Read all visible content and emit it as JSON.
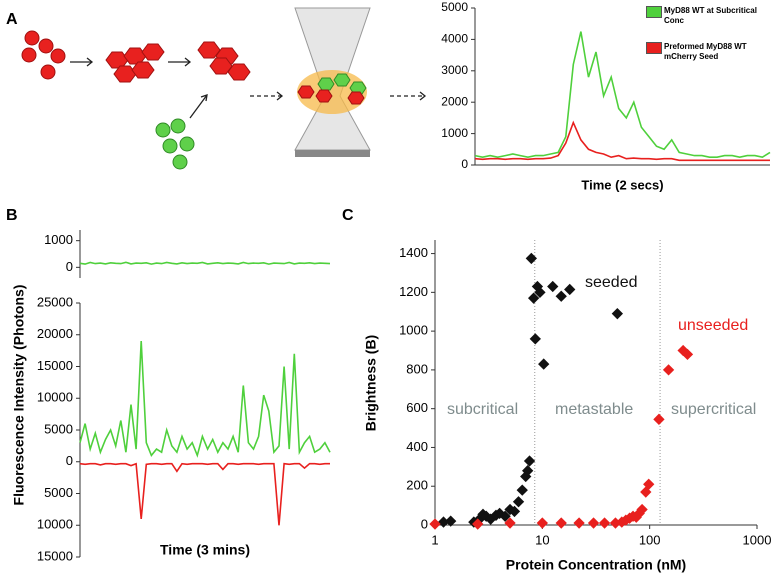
{
  "chart_data": [
    {
      "type": "line",
      "panel": "A",
      "xlabel": "Time (2 secs)",
      "categories": [
        null,
        null,
        null,
        null,
        null,
        null,
        null,
        null,
        null,
        null,
        null,
        null,
        null,
        null,
        null,
        null,
        null,
        null,
        null,
        null,
        null,
        null,
        null,
        null,
        null,
        null,
        null,
        null,
        null,
        null,
        null,
        null,
        null,
        null,
        null,
        null,
        null,
        null,
        null,
        null
      ],
      "ylim": [
        0,
        5000
      ],
      "yticks": [
        0,
        1000,
        2000,
        3000,
        4000,
        5000
      ],
      "series": [
        {
          "name": "MyD88 WT at Subcritical Conc",
          "color": "#4fd03c",
          "values": [
            300,
            250,
            300,
            250,
            300,
            350,
            300,
            250,
            300,
            300,
            350,
            400,
            900,
            3200,
            4250,
            2800,
            3600,
            2200,
            2800,
            1800,
            1500,
            2000,
            1200,
            900,
            600,
            500,
            800,
            400,
            350,
            300,
            300,
            250,
            250,
            300,
            300,
            250,
            300,
            300,
            250,
            400
          ]
        },
        {
          "name": "Preformed MyD88 WT mCherry Seed",
          "color": "#e8201e",
          "values": [
            200,
            180,
            200,
            200,
            180,
            200,
            200,
            180,
            200,
            200,
            220,
            300,
            700,
            1350,
            800,
            500,
            400,
            350,
            250,
            300,
            200,
            220,
            200,
            200,
            180,
            200,
            200,
            150,
            150,
            150,
            150,
            150,
            150,
            150,
            150,
            150,
            150,
            150,
            150,
            150
          ]
        }
      ]
    },
    {
      "type": "line",
      "panel": "B",
      "ylabel": "Fluorescence Intensity (Photons)",
      "xlabel": "Time (3 mins)",
      "subplots": [
        {
          "ylim": [
            -400,
            1400
          ],
          "yticks": [
            0,
            1000
          ],
          "series": [
            {
              "color": "#4fd03c",
              "values": [
                150,
                120,
                180,
                140,
                160,
                130,
                170,
                150,
                140,
                190,
                130,
                160,
                150,
                170,
                120,
                160,
                140,
                180,
                150,
                130,
                170,
                140,
                160,
                150,
                180,
                130,
                150,
                170,
                140,
                160,
                150,
                130,
                180,
                140,
                160,
                150,
                170,
                120,
                160,
                150,
                140,
                180,
                130,
                160,
                150,
                170,
                140,
                160,
                150,
                140
              ]
            }
          ]
        },
        {
          "ylim": [
            -15000,
            25000
          ],
          "yticks": [
            {
              "value": -15000,
              "label": "15000"
            },
            {
              "value": -10000,
              "label": "10000"
            },
            {
              "value": -5000,
              "label": "5000"
            },
            0,
            5000,
            10000,
            15000,
            20000,
            25000
          ],
          "series": [
            {
              "color": "#4fd03c",
              "values": [
                3000,
                6000,
                2000,
                4500,
                1500,
                3500,
                5000,
                2500,
                6500,
                1500,
                9000,
                2000,
                19000,
                3000,
                1000,
                2000,
                1500,
                5000,
                2500,
                1500,
                4000,
                2000,
                3000,
                1000,
                4000,
                2000,
                3500,
                1500,
                3000,
                2000,
                4000,
                1500,
                12000,
                3000,
                2000,
                4000,
                10500,
                8000,
                1500,
                2500,
                15000,
                2000,
                17000,
                1500,
                3000,
                4000,
                1500,
                2000,
                3000,
                1500
              ]
            },
            {
              "color": "#e8201e",
              "values": [
                -300,
                -400,
                -300,
                -300,
                -500,
                -300,
                -300,
                -400,
                -300,
                -300,
                -600,
                -300,
                -9000,
                -400,
                -300,
                -300,
                -400,
                -300,
                -300,
                -1500,
                -300,
                -400,
                -300,
                -300,
                -300,
                -400,
                -300,
                -300,
                -1200,
                -300,
                -300,
                -400,
                -300,
                -300,
                -300,
                -400,
                -300,
                -300,
                -300,
                -10000,
                -300,
                -400,
                -300,
                -300,
                -1000,
                -300,
                -300,
                -400,
                -300,
                -300
              ]
            }
          ]
        }
      ]
    },
    {
      "type": "scatter",
      "panel": "C",
      "xlabel": "Protein Concentration (nM)",
      "ylabel": "Brightness (B)",
      "log_x": true,
      "xlim": [
        1,
        1000
      ],
      "xticks": [
        1,
        10,
        100,
        1000
      ],
      "ylim": [
        0,
        1470
      ],
      "yticks": [
        0,
        200,
        400,
        600,
        800,
        1000,
        1200,
        1400
      ],
      "vlines": [
        8.5,
        125
      ],
      "series": [
        {
          "name": "seeded",
          "color": "#111111",
          "x": [
            1.2,
            1.4,
            2.3,
            2.6,
            2.8,
            3.0,
            3.3,
            3.7,
            4.0,
            4.5,
            5.0,
            5.5,
            6.0,
            6.5,
            7.0,
            7.3,
            7.6,
            7.9,
            8.3,
            8.6,
            9.0,
            9.5,
            10.3,
            12.5,
            15,
            18,
            50
          ],
          "values": [
            15,
            20,
            15,
            30,
            55,
            45,
            30,
            50,
            60,
            45,
            80,
            70,
            120,
            180,
            250,
            280,
            330,
            1375,
            1170,
            960,
            1230,
            1200,
            830,
            1230,
            1180,
            1215,
            1090
          ]
        },
        {
          "name": "unseeded",
          "color": "#e8201e",
          "x": [
            1,
            2.5,
            5,
            10,
            15,
            22,
            30,
            38,
            48,
            55,
            60,
            65,
            70,
            75,
            80,
            85,
            92,
            98,
            122,
            150,
            205,
            225
          ],
          "values": [
            5,
            5,
            10,
            10,
            10,
            10,
            10,
            10,
            10,
            15,
            25,
            35,
            45,
            40,
            60,
            80,
            170,
            210,
            545,
            800,
            900,
            880
          ]
        }
      ],
      "annotations": [
        {
          "text": "subcritical",
          "color": "#7f8c8d"
        },
        {
          "text": "metastable",
          "color": "#7f8c8d"
        },
        {
          "text": "supercritical",
          "color": "#7f8c8d"
        }
      ]
    }
  ]
}
